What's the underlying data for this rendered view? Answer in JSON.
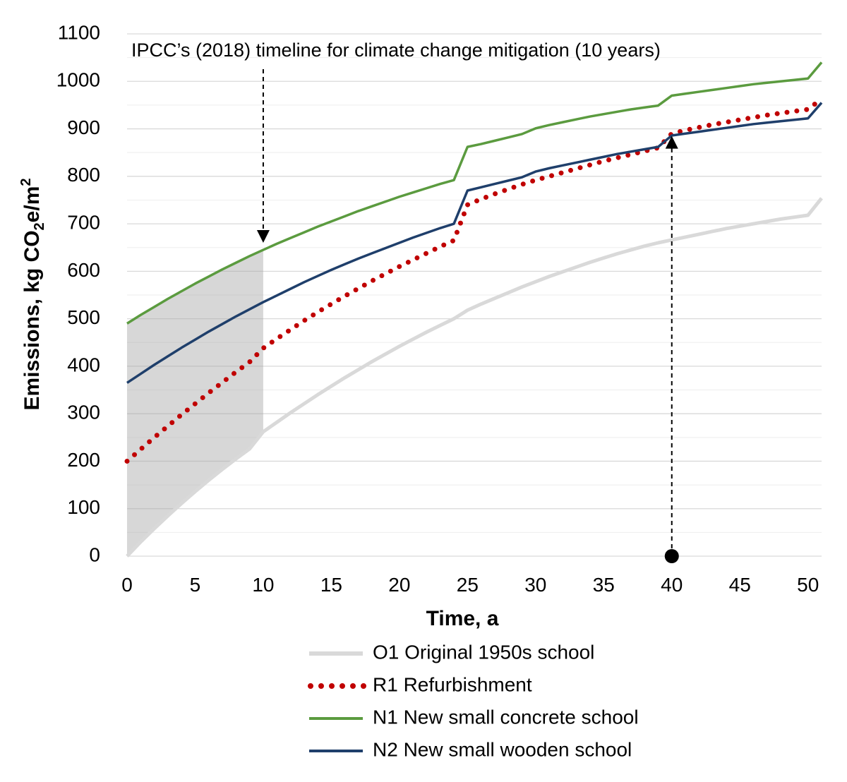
{
  "chart_data": {
    "type": "line",
    "xlabel": "Time, a",
    "ylabel_main": "Emissions, kg CO",
    "ylabel_sub": "2",
    "ylabel_tail": "e/m",
    "ylabel_sup": "2",
    "xlim": [
      0,
      51
    ],
    "ylim": [
      0,
      1100
    ],
    "xticks": [
      0,
      5,
      10,
      15,
      20,
      25,
      30,
      35,
      40,
      45,
      50
    ],
    "yticks": [
      0,
      100,
      200,
      300,
      400,
      500,
      600,
      700,
      800,
      900,
      1000,
      1100
    ],
    "grid": true,
    "shaded_region": {
      "x_from": 0,
      "x_to": 10
    },
    "annotations": [
      {
        "text": "IPCC’s (2018) timeline for climate change mitigation (10 years)",
        "arrow_x": 10,
        "arrow_to_y": 660
      },
      {
        "arrow_x": 40,
        "from_y": 0,
        "to_y": 885
      }
    ],
    "x": [
      0,
      1,
      2,
      3,
      4,
      5,
      6,
      7,
      8,
      9,
      10,
      11,
      12,
      13,
      14,
      15,
      16,
      17,
      18,
      19,
      20,
      21,
      22,
      23,
      24,
      25,
      26,
      27,
      28,
      29,
      30,
      31,
      32,
      33,
      34,
      35,
      36,
      37,
      38,
      39,
      40,
      41,
      42,
      43,
      44,
      45,
      46,
      47,
      48,
      49,
      50,
      51
    ],
    "series": [
      {
        "name": "O1 Original 1950s school",
        "color": "#d9d9d9",
        "style": "solid",
        "values": [
          0,
          30,
          58,
          85,
          111,
          136,
          160,
          183,
          205,
          226,
          262,
          282,
          302,
          321,
          340,
          358,
          376,
          393,
          410,
          426,
          442,
          457,
          472,
          486,
          500,
          518,
          531,
          543,
          555,
          567,
          578,
          589,
          599,
          609,
          619,
          628,
          637,
          645,
          653,
          660,
          666,
          672,
          678,
          684,
          690,
          695,
          700,
          705,
          710,
          714,
          718,
          754
        ]
      },
      {
        "name": "R1 Refurbishment",
        "color": "#c00000",
        "style": "dotted",
        "values": [
          200,
          225,
          250,
          274,
          298,
          321,
          344,
          366,
          388,
          409,
          438,
          458,
          477,
          496,
          514,
          531,
          548,
          564,
          580,
          595,
          610,
          624,
          638,
          652,
          665,
          740,
          752,
          763,
          773,
          783,
          792,
          800,
          808,
          816,
          824,
          832,
          839,
          846,
          853,
          860,
          890,
          897,
          903,
          909,
          914,
          919,
          924,
          929,
          933,
          937,
          941,
          963
        ]
      },
      {
        "name": "N1 New small concrete school",
        "color": "#5b9b3f",
        "style": "solid",
        "values": [
          490,
          508,
          525,
          542,
          558,
          574,
          589,
          604,
          618,
          632,
          645,
          658,
          670,
          682,
          694,
          705,
          716,
          727,
          737,
          747,
          757,
          766,
          775,
          784,
          792,
          862,
          868,
          875,
          882,
          889,
          901,
          908,
          914,
          920,
          926,
          931,
          936,
          941,
          945,
          949,
          970,
          974,
          978,
          982,
          986,
          990,
          994,
          997,
          1000,
          1003,
          1006,
          1040
        ]
      },
      {
        "name": "N2 New small wooden school",
        "color": "#1f3f6b",
        "style": "solid",
        "values": [
          365,
          384,
          403,
          421,
          439,
          456,
          473,
          489,
          505,
          520,
          535,
          549,
          563,
          577,
          590,
          603,
          615,
          627,
          638,
          649,
          660,
          671,
          681,
          691,
          700,
          770,
          777,
          784,
          791,
          798,
          810,
          817,
          823,
          829,
          835,
          841,
          847,
          852,
          857,
          862,
          886,
          890,
          894,
          898,
          902,
          906,
          910,
          913,
          916,
          919,
          922,
          955
        ]
      }
    ]
  }
}
